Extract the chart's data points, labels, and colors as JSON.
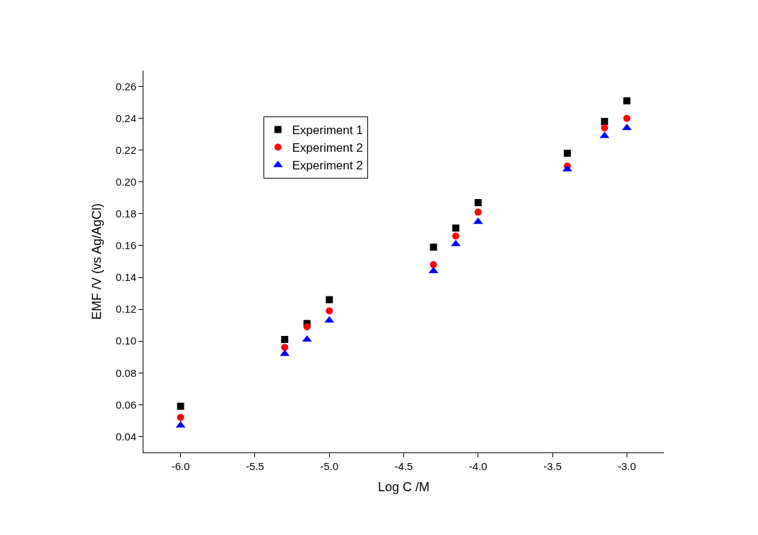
{
  "chart_data": {
    "type": "scatter",
    "xlabel": "Log C /M",
    "ylabel": "EMF /V (vs Ag/AgCl)",
    "x": [
      -6.0,
      -5.3,
      -5.15,
      -5.0,
      -4.3,
      -4.15,
      -4.0,
      -3.4,
      -3.15,
      -3.0
    ],
    "series": [
      {
        "name": "Experiment 1",
        "color": "#000000",
        "marker": "square",
        "values": [
          0.059,
          0.101,
          0.111,
          0.126,
          0.159,
          0.171,
          0.187,
          0.218,
          0.238,
          0.251
        ]
      },
      {
        "name": "Experiment 2",
        "color": "#ff0000",
        "marker": "circle",
        "values": [
          0.052,
          0.096,
          0.109,
          0.119,
          0.148,
          0.166,
          0.181,
          0.21,
          0.234,
          0.24
        ]
      },
      {
        "name": "Experiment 2",
        "color": "#0000ff",
        "marker": "triangle",
        "values": [
          0.047,
          0.092,
          0.101,
          0.113,
          0.144,
          0.161,
          0.175,
          0.208,
          0.229,
          0.234
        ]
      }
    ],
    "xlim": [
      -6.25,
      -2.75
    ],
    "xticks": [
      {
        "value": -6.0,
        "label": "-6.0"
      },
      {
        "value": -5.5,
        "label": "-5.5"
      },
      {
        "value": -5.0,
        "label": "-5.0"
      },
      {
        "value": -4.5,
        "label": "-4.5"
      },
      {
        "value": -4.0,
        "label": "-4.0"
      },
      {
        "value": -3.5,
        "label": "-3.5"
      },
      {
        "value": -3.0,
        "label": "-3.0"
      }
    ],
    "ylim": [
      0.03,
      0.27
    ],
    "yticks": [
      {
        "value": 0.04,
        "label": "0.04"
      },
      {
        "value": 0.06,
        "label": "0.06"
      },
      {
        "value": 0.08,
        "label": "0.08"
      },
      {
        "value": 0.1,
        "label": "0.10"
      },
      {
        "value": 0.12,
        "label": "0.12"
      },
      {
        "value": 0.14,
        "label": "0.14"
      },
      {
        "value": 0.16,
        "label": "0.16"
      },
      {
        "value": 0.18,
        "label": "0.18"
      },
      {
        "value": 0.2,
        "label": "0.20"
      },
      {
        "value": 0.22,
        "label": "0.22"
      },
      {
        "value": 0.24,
        "label": "0.24"
      },
      {
        "value": 0.26,
        "label": "0.26"
      }
    ],
    "legend": "top left"
  }
}
